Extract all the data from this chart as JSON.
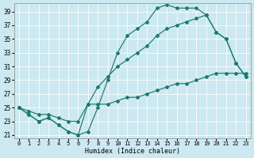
{
  "bg_color": "#cce8f0",
  "line_color": "#1a7a6a",
  "xlabel": "Humidex (Indice chaleur)",
  "xlim": [
    -0.5,
    23.5
  ],
  "ylim": [
    20.5,
    40.2
  ],
  "xticks": [
    0,
    1,
    2,
    3,
    4,
    5,
    6,
    7,
    8,
    9,
    10,
    11,
    12,
    13,
    14,
    15,
    16,
    17,
    18,
    19,
    20,
    21,
    22,
    23
  ],
  "yticks": [
    21,
    23,
    25,
    27,
    29,
    31,
    33,
    35,
    37,
    39
  ],
  "curve_top_x": [
    0,
    1,
    2,
    3,
    4,
    5,
    6,
    7,
    8,
    9,
    10,
    11,
    12,
    13,
    14,
    15,
    16,
    17,
    18,
    19,
    20,
    21,
    22,
    23
  ],
  "curve_top_y": [
    25.0,
    24.0,
    23.0,
    23.5,
    22.5,
    21.5,
    21.0,
    21.5,
    25.0,
    29.0,
    33.0,
    35.5,
    36.5,
    37.5,
    39.5,
    40.0,
    39.5,
    39.5,
    39.5,
    38.5,
    36.0,
    35.0,
    31.5,
    29.5
  ],
  "curve_mid_x": [
    0,
    1,
    2,
    3,
    4,
    5,
    6,
    7,
    8,
    9,
    10,
    11,
    12,
    13,
    14,
    15,
    16,
    17,
    18,
    19,
    20,
    21,
    22,
    23
  ],
  "curve_mid_y": [
    25.0,
    24.0,
    23.0,
    23.5,
    22.5,
    21.5,
    21.0,
    25.5,
    28.0,
    29.5,
    31.0,
    32.0,
    33.0,
    34.0,
    35.5,
    36.5,
    37.0,
    37.5,
    38.0,
    38.5,
    36.0,
    35.0,
    31.5,
    29.5
  ],
  "curve_bot_x": [
    0,
    1,
    2,
    3,
    4,
    5,
    6,
    7,
    8,
    9,
    10,
    11,
    12,
    13,
    14,
    15,
    16,
    17,
    18,
    19,
    20,
    21,
    22,
    23
  ],
  "curve_bot_y": [
    25.0,
    24.5,
    24.0,
    24.0,
    23.5,
    23.0,
    23.0,
    25.5,
    25.5,
    25.5,
    26.0,
    26.5,
    26.5,
    27.0,
    27.5,
    28.0,
    28.5,
    28.5,
    29.0,
    29.5,
    30.0,
    30.0,
    30.0,
    30.0
  ]
}
